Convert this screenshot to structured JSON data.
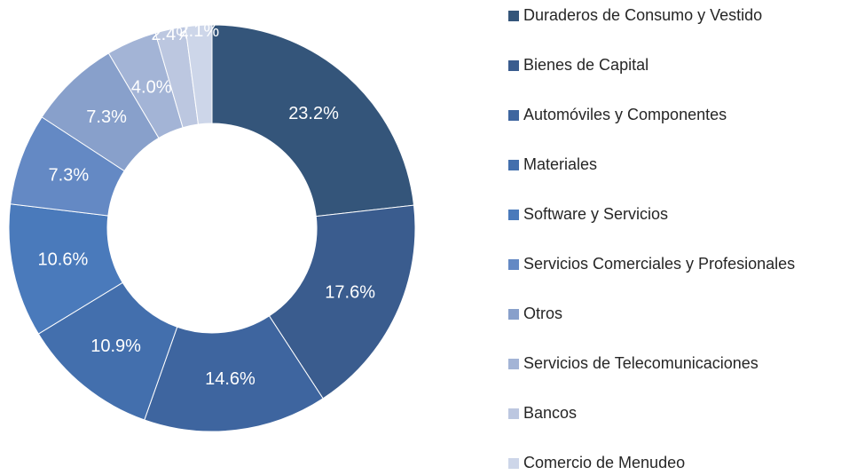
{
  "chart_data": {
    "type": "donut",
    "categories": [
      "Duraderos de Consumo y Vestido",
      "Bienes de Capital",
      "Automóviles y Componentes",
      "Materiales",
      "Software y Servicios",
      "Servicios Comerciales y Profesionales",
      "Otros",
      "Servicios de Telecomunicaciones",
      "Bancos",
      "Comercio de Menudeo"
    ],
    "values": [
      23.2,
      17.6,
      14.6,
      10.9,
      10.6,
      7.3,
      7.3,
      4.0,
      2.4,
      2.1
    ],
    "value_labels": [
      "23.2%",
      "17.6%",
      "14.6%",
      "10.9%",
      "10.6%",
      "7.3%",
      "7.3%",
      "4.0%",
      "2.4%",
      "2.1%"
    ],
    "colors": [
      "#34557a",
      "#3a5c8e",
      "#3e659f",
      "#436fad",
      "#4a7abb",
      "#6489c4",
      "#88a0cb",
      "#a3b4d6",
      "#bcc7e0",
      "#cdd6e9"
    ],
    "legend": "right"
  }
}
